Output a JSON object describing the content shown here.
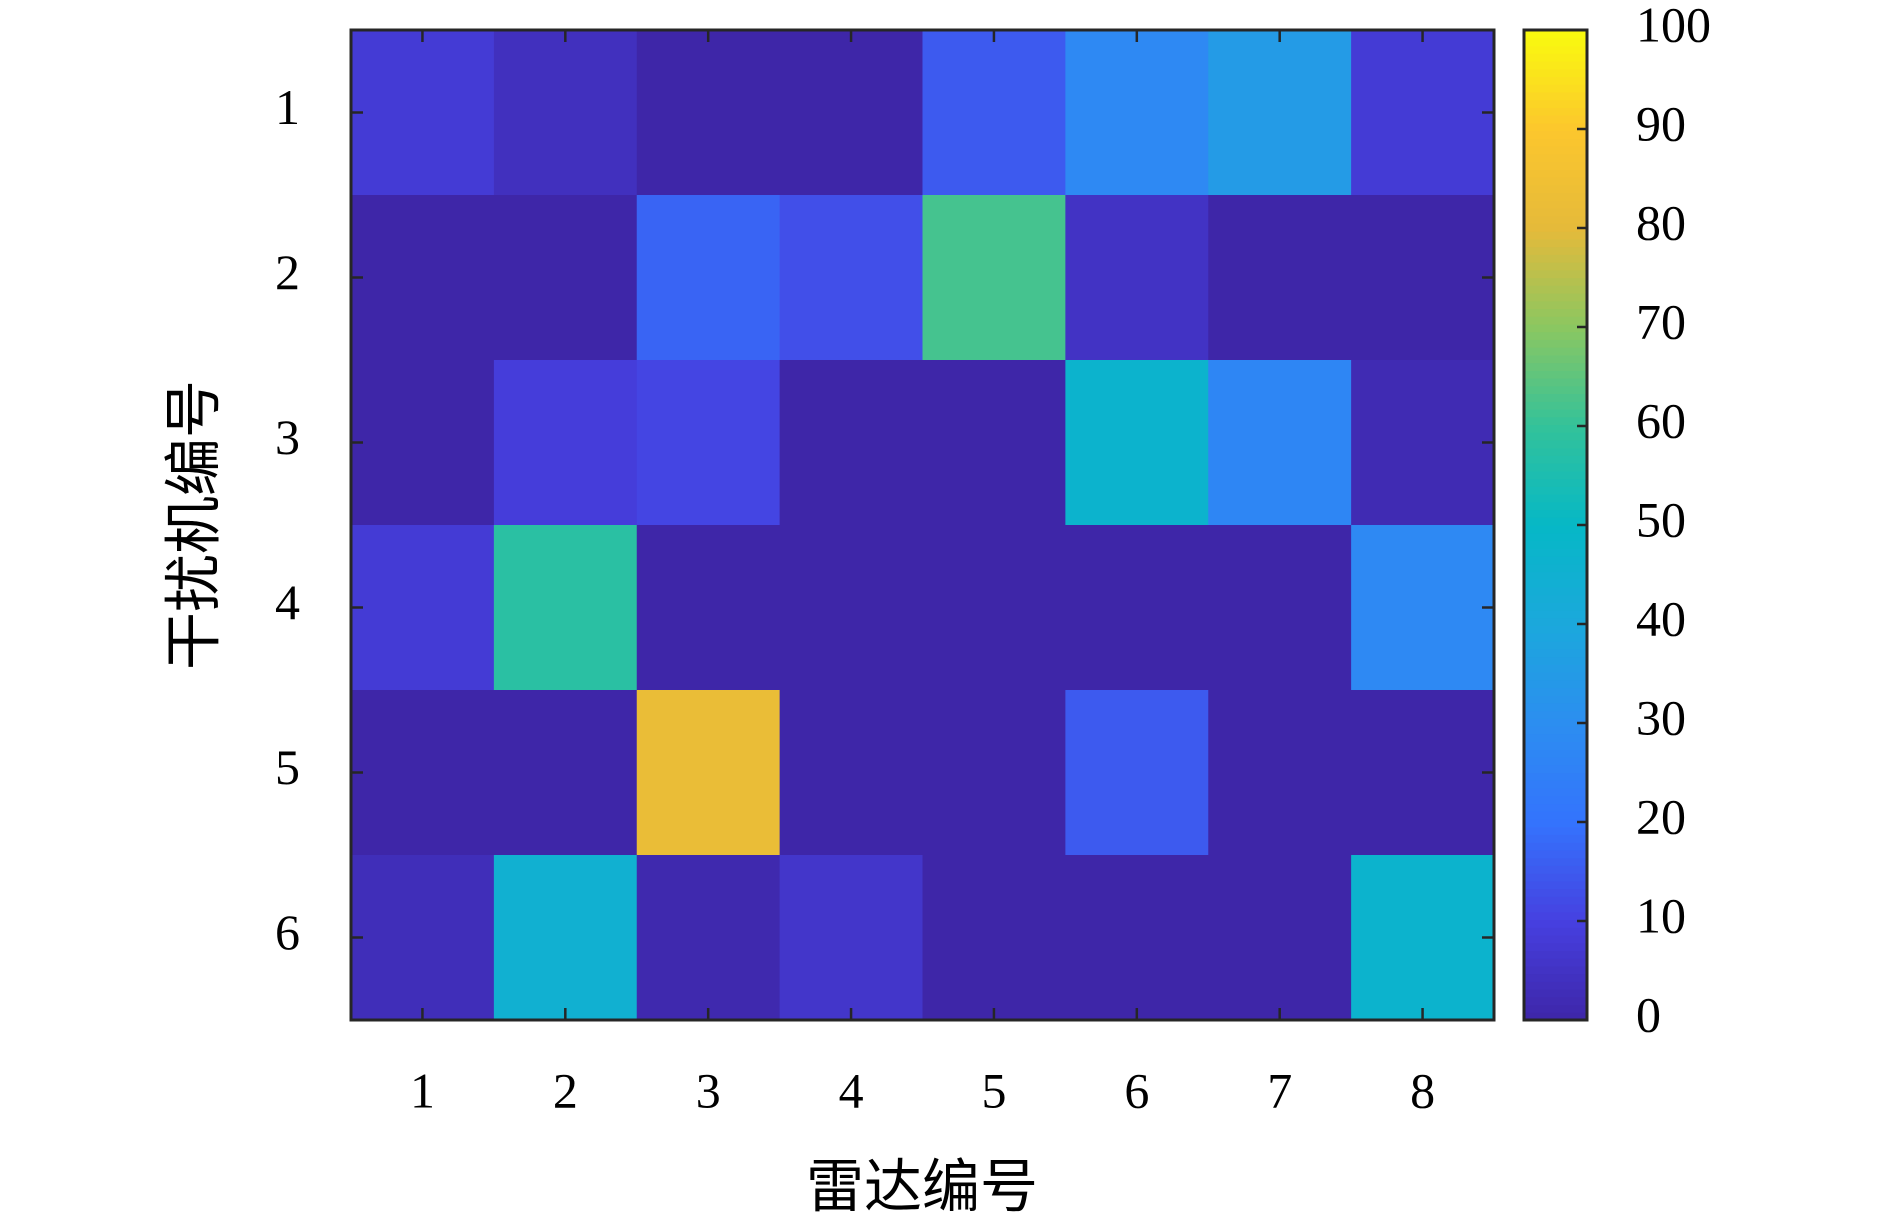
{
  "chart_data": {
    "type": "heatmap",
    "x_label": "雷达编号",
    "y_label": "干扰机编号",
    "x_categories": [
      "1",
      "2",
      "3",
      "4",
      "5",
      "6",
      "7",
      "8"
    ],
    "y_categories": [
      "1",
      "2",
      "3",
      "4",
      "5",
      "6"
    ],
    "values": [
      [
        8,
        4,
        0,
        0,
        15,
        28,
        35,
        8
      ],
      [
        0,
        0,
        17,
        13,
        62,
        5,
        0,
        0
      ],
      [
        0,
        9,
        11,
        0,
        0,
        47,
        27,
        2
      ],
      [
        8,
        58,
        0,
        0,
        0,
        0,
        0,
        28
      ],
      [
        0,
        0,
        82,
        0,
        0,
        15,
        0,
        0
      ],
      [
        3,
        45,
        1,
        6,
        0,
        0,
        0,
        47
      ]
    ],
    "colormap": [
      "#3e26a8",
      "#4640e0",
      "#3473fd",
      "#2c8ef0",
      "#1ba8dc",
      "#06b8c6",
      "#33c29a",
      "#8bc761",
      "#e5ba3a",
      "#fcc72d",
      "#f9fb0e"
    ],
    "zlim": [
      0,
      100
    ],
    "colorbar_ticks": [
      0,
      10,
      20,
      30,
      40,
      50,
      60,
      70,
      80,
      90,
      100
    ]
  }
}
